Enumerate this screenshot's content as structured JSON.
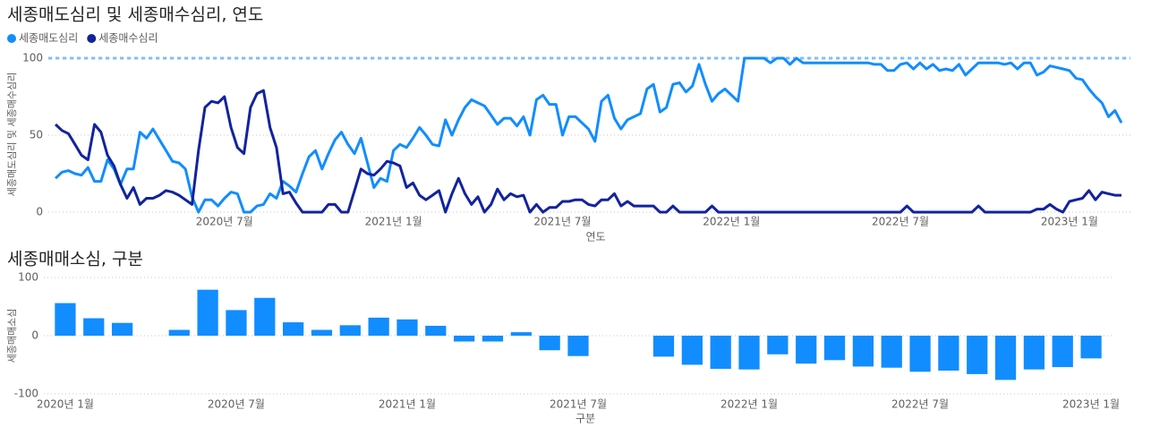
{
  "chart_data": [
    {
      "type": "line",
      "title": "세종매도심리 및 세종매수심리, 연도",
      "y_label": "세종매도심리 및 세종매수심리",
      "x_label": "연도",
      "categories": [
        null,
        null,
        null,
        null,
        null,
        null,
        null,
        null,
        null,
        null,
        null,
        null,
        null,
        null,
        null,
        null,
        null,
        null,
        null,
        null,
        null,
        null,
        null,
        null,
        null,
        null,
        "2020년 7월",
        null,
        null,
        null,
        null,
        null,
        null,
        null,
        null,
        null,
        null,
        null,
        null,
        null,
        null,
        null,
        null,
        null,
        null,
        null,
        null,
        null,
        null,
        null,
        null,
        null,
        "2021년 1월",
        null,
        null,
        null,
        null,
        null,
        null,
        null,
        null,
        null,
        null,
        null,
        null,
        null,
        null,
        null,
        null,
        null,
        null,
        null,
        null,
        null,
        null,
        null,
        null,
        null,
        "2021년 7월",
        null,
        null,
        null,
        null,
        null,
        null,
        null,
        null,
        null,
        null,
        null,
        null,
        null,
        null,
        null,
        null,
        null,
        null,
        null,
        null,
        null,
        null,
        null,
        null,
        null,
        "2022년 1월",
        null,
        null,
        null,
        null,
        null,
        null,
        null,
        null,
        null,
        null,
        null,
        null,
        null,
        null,
        null,
        null,
        null,
        null,
        null,
        null,
        null,
        null,
        null,
        null,
        null,
        "2022년 7월",
        null,
        null,
        null,
        null,
        null,
        null,
        null,
        null,
        null,
        null,
        null,
        null,
        null,
        null,
        null,
        null,
        null,
        null,
        null,
        null,
        null,
        null,
        null,
        null,
        null,
        "2023년 1월",
        null,
        null,
        null,
        null,
        null,
        null,
        null,
        null
      ],
      "series": [
        {
          "name": "세종매도심리",
          "color": "#118dff",
          "values": [
            22,
            26,
            27,
            25,
            24,
            29,
            20,
            20,
            34,
            28,
            18,
            28,
            28,
            52,
            48,
            54,
            47,
            40,
            33,
            32,
            28,
            10,
            0,
            8,
            8,
            4,
            9,
            13,
            12,
            0,
            0,
            4,
            5,
            12,
            9,
            20,
            17,
            13,
            25,
            36,
            40,
            28,
            38,
            47,
            52,
            44,
            38,
            48,
            32,
            16,
            22,
            20,
            40,
            44,
            42,
            48,
            55,
            50,
            44,
            43,
            60,
            50,
            60,
            68,
            73,
            71,
            69,
            63,
            57,
            61,
            61,
            56,
            62,
            50,
            73,
            76,
            70,
            70,
            50,
            62,
            62,
            58,
            54,
            46,
            72,
            76,
            61,
            54,
            60,
            62,
            64,
            80,
            83,
            65,
            68,
            83,
            84,
            78,
            82,
            96,
            83,
            72,
            77,
            80,
            76,
            72,
            100,
            100,
            100,
            100,
            97,
            100,
            100,
            96,
            100,
            97,
            97,
            97,
            97,
            97,
            97,
            97,
            97,
            97,
            97,
            97,
            96,
            96,
            92,
            92,
            96,
            97,
            93,
            97,
            93,
            96,
            92,
            93,
            92,
            96,
            89,
            93,
            97,
            97,
            97,
            97,
            96,
            97,
            93,
            97,
            97,
            89,
            91,
            95,
            94,
            93,
            92,
            87,
            86,
            80,
            75,
            71,
            62,
            66,
            58
          ]
        },
        {
          "name": "세종매수심리",
          "color": "#12239e",
          "values": [
            57,
            53,
            51,
            44,
            37,
            34,
            57,
            52,
            37,
            30,
            18,
            9,
            16,
            5,
            9,
            9,
            11,
            14,
            13,
            11,
            8,
            5,
            40,
            68,
            72,
            71,
            75,
            55,
            42,
            38,
            68,
            77,
            79,
            55,
            42,
            12,
            13,
            6,
            0,
            0,
            0,
            0,
            5,
            5,
            0,
            0,
            14,
            28,
            25,
            24,
            28,
            33,
            32,
            30,
            16,
            19,
            11,
            8,
            11,
            14,
            0,
            12,
            22,
            12,
            5,
            10,
            0,
            5,
            15,
            8,
            12,
            10,
            11,
            0,
            5,
            0,
            3,
            3,
            7,
            7,
            8,
            8,
            5,
            4,
            8,
            8,
            12,
            4,
            7,
            4,
            4,
            4,
            4,
            0,
            0,
            4,
            0,
            0,
            0,
            0,
            0,
            4,
            0,
            0,
            0,
            0,
            0,
            0,
            0,
            0,
            0,
            0,
            0,
            0,
            0,
            0,
            0,
            0,
            0,
            0,
            0,
            0,
            0,
            0,
            0,
            0,
            0,
            0,
            0,
            0,
            0,
            4,
            0,
            0,
            0,
            0,
            0,
            0,
            0,
            0,
            0,
            0,
            4,
            0,
            0,
            0,
            0,
            0,
            0,
            0,
            0,
            2,
            2,
            5,
            2,
            0,
            7,
            8,
            9,
            14,
            8,
            13,
            12,
            11,
            11
          ]
        }
      ],
      "max_line": 100,
      "ylim": [
        0,
        100
      ],
      "yticks": [
        0,
        50,
        100
      ],
      "grid": true,
      "legend": "top-left"
    },
    {
      "type": "bar",
      "title": "세종매매소심, 구분",
      "y_label": "세종매매소심",
      "x_label": "구분",
      "color": "#118dff",
      "categories": [
        "2020년 1월",
        null,
        null,
        null,
        null,
        null,
        "2020년 7월",
        null,
        null,
        null,
        null,
        null,
        "2021년 1월",
        null,
        null,
        null,
        null,
        null,
        "2021년 7월",
        null,
        null,
        null,
        null,
        null,
        "2022년 1월",
        null,
        null,
        null,
        null,
        null,
        "2022년 7월",
        null,
        null,
        null,
        null,
        null,
        "2023년 1월"
      ],
      "values": [
        56,
        30,
        22,
        null,
        10,
        79,
        44,
        65,
        23,
        10,
        18,
        31,
        28,
        17,
        -10,
        -10,
        6,
        -25,
        -35,
        null,
        null,
        -36,
        -50,
        -57,
        -58,
        -32,
        -48,
        -42,
        -53,
        -55,
        -62,
        -60,
        -66,
        -76,
        -58,
        -54,
        -39
      ],
      "ylim": [
        -100,
        100
      ],
      "yticks": [
        -100,
        0,
        100
      ],
      "grid": true
    }
  ]
}
